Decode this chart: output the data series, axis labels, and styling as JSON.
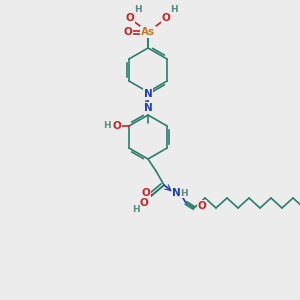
{
  "bg_color": "#ececec",
  "bond_color": "#2d7d6e",
  "N_color": "#1e3eb5",
  "O_color": "#cc2222",
  "As_color": "#c47a20",
  "H_color": "#5a8a80",
  "font_size": 7.5,
  "bond_lw": 1.2,
  "atoms": {
    "As": {
      "color": "#c47a20"
    },
    "N": {
      "color": "#1e3eb5"
    },
    "O": {
      "color": "#cc2222"
    },
    "C": {
      "color": "#2d7d6e"
    },
    "H": {
      "color": "#5a8a80"
    }
  }
}
